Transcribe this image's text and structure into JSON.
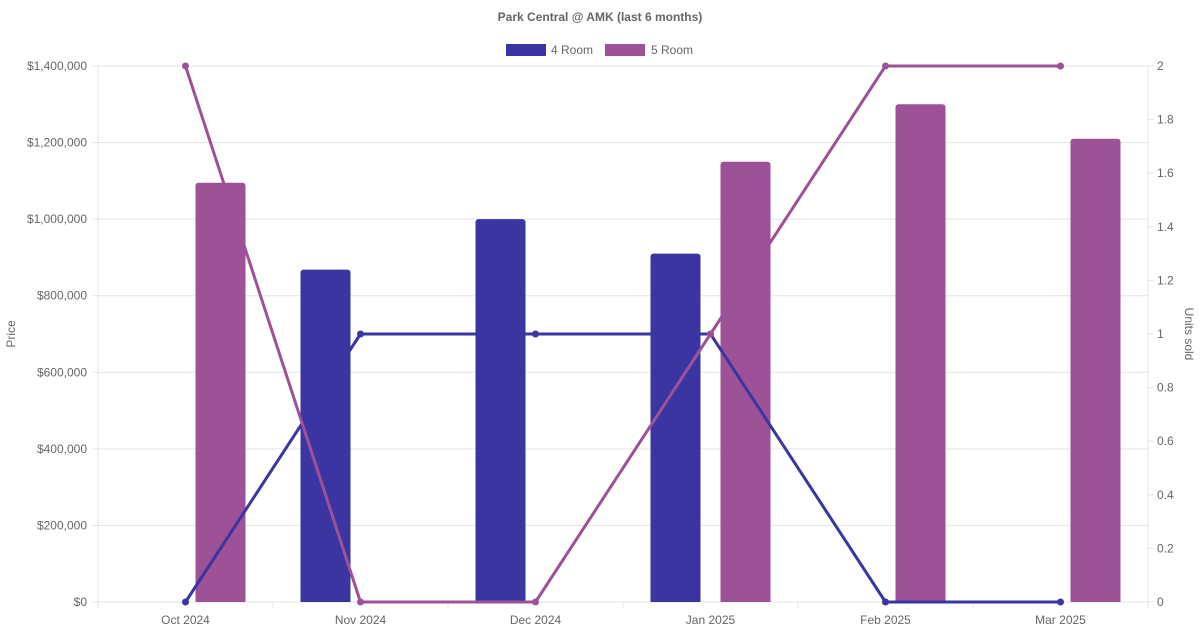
{
  "chart_data": {
    "type": "bar",
    "title": "Park Central @ AMK (last 6 months)",
    "categories": [
      "Oct 2024",
      "Nov 2024",
      "Dec 2024",
      "Jan 2025",
      "Feb 2025",
      "Mar 2025"
    ],
    "y_left": {
      "label": "Price",
      "range": [
        0,
        1400000
      ],
      "ticks": [
        0,
        200000,
        400000,
        600000,
        800000,
        1000000,
        1200000,
        1400000
      ],
      "tick_labels": [
        "$0",
        "$200,000",
        "$400,000",
        "$600,000",
        "$800,000",
        "$1,000,000",
        "$1,200,000",
        "$1,400,000"
      ]
    },
    "y_right": {
      "label": "Units sold",
      "range": [
        0,
        2
      ],
      "ticks": [
        0,
        0.2,
        0.4,
        0.6,
        0.8,
        1,
        1.2,
        1.4,
        1.6,
        1.8,
        2
      ],
      "tick_labels": [
        "0",
        "0.2",
        "0.4",
        "0.6",
        "0.8",
        "1",
        "1.2",
        "1.4",
        "1.6",
        "1.8",
        "2"
      ]
    },
    "legend": {
      "placement": "top-center"
    },
    "grid": true,
    "series": [
      {
        "name": "4 Room",
        "color": "#3a35a0",
        "price": [
          null,
          868000,
          1000000,
          910000,
          null,
          null
        ],
        "units_sold": [
          0,
          1,
          1,
          1,
          0,
          0
        ]
      },
      {
        "name": "5 Room",
        "color": "#9d5196",
        "price": [
          1095000,
          null,
          null,
          1150000,
          1300000,
          1210000
        ],
        "units_sold": [
          2,
          0,
          0,
          1,
          2,
          2
        ]
      }
    ]
  }
}
